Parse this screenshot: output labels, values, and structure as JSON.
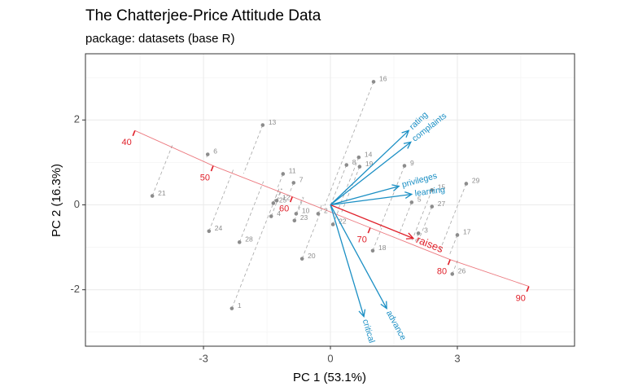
{
  "chart_data": {
    "type": "biplot",
    "title": "The Chatterjee-Price Attitude Data",
    "subtitle": "package: datasets (base R)",
    "x_label": "PC 1 (53.1%)",
    "y_label": "PC 2 (16.3%)",
    "xlim": [
      -5.79,
      5.77
    ],
    "ylim": [
      -3.33,
      3.56
    ],
    "xticks": [
      -3,
      0,
      3
    ],
    "yticks": [
      -2,
      0,
      2
    ],
    "grid": true,
    "points": {
      "color": "#8c8c8c",
      "labels": [
        "1",
        "2",
        "3",
        "4",
        "5",
        "6",
        "7",
        "8",
        "9",
        "10",
        "11",
        "12",
        "13",
        "14",
        "15",
        "16",
        "17",
        "18",
        "19",
        "20",
        "21",
        "22",
        "23",
        "24",
        "25",
        "26",
        "27",
        "28",
        "29"
      ],
      "x": [
        -2.33,
        -0.29,
        2.08,
        -1.4,
        1.92,
        -2.9,
        -0.87,
        0.38,
        1.75,
        -0.81,
        -1.12,
        -1.27,
        -1.6,
        0.67,
        2.4,
        1.02,
        3.0,
        1.0,
        0.69,
        -0.67,
        -4.21,
        0.06,
        -0.85,
        -2.87,
        -1.35,
        2.88,
        2.4,
        -2.15,
        3.21
      ],
      "y": [
        -2.44,
        -0.21,
        -0.67,
        -0.27,
        0.06,
        1.19,
        0.52,
        0.94,
        0.92,
        -0.21,
        0.73,
        0.1,
        1.88,
        1.12,
        0.35,
        2.9,
        -0.71,
        -1.08,
        0.9,
        -1.27,
        0.21,
        -0.46,
        -0.37,
        -0.62,
        0.04,
        -1.63,
        -0.04,
        -0.88,
        0.5
      ]
    },
    "loadings": {
      "names": [
        "rating",
        "complaints",
        "privileges",
        "learning",
        "raises",
        "critical",
        "advance"
      ],
      "x": [
        1.85,
        1.9,
        1.62,
        1.92,
        1.96,
        0.79,
        1.33
      ],
      "y": [
        1.75,
        1.48,
        0.44,
        0.25,
        -0.79,
        -2.63,
        -2.44
      ],
      "colors": [
        "#1b8fc4",
        "#1b8fc4",
        "#1b8fc4",
        "#1b8fc4",
        "#e0202a",
        "#1b8fc4",
        "#1b8fc4"
      ]
    },
    "calibration": {
      "color": "#e0202a",
      "ticks": [
        40,
        50,
        60,
        70,
        80,
        90
      ],
      "x": [
        -4.62,
        -2.77,
        -0.9,
        0.94,
        2.83,
        4.69
      ],
      "y": [
        1.75,
        0.92,
        0.19,
        -0.54,
        -1.29,
        -1.92
      ]
    }
  }
}
